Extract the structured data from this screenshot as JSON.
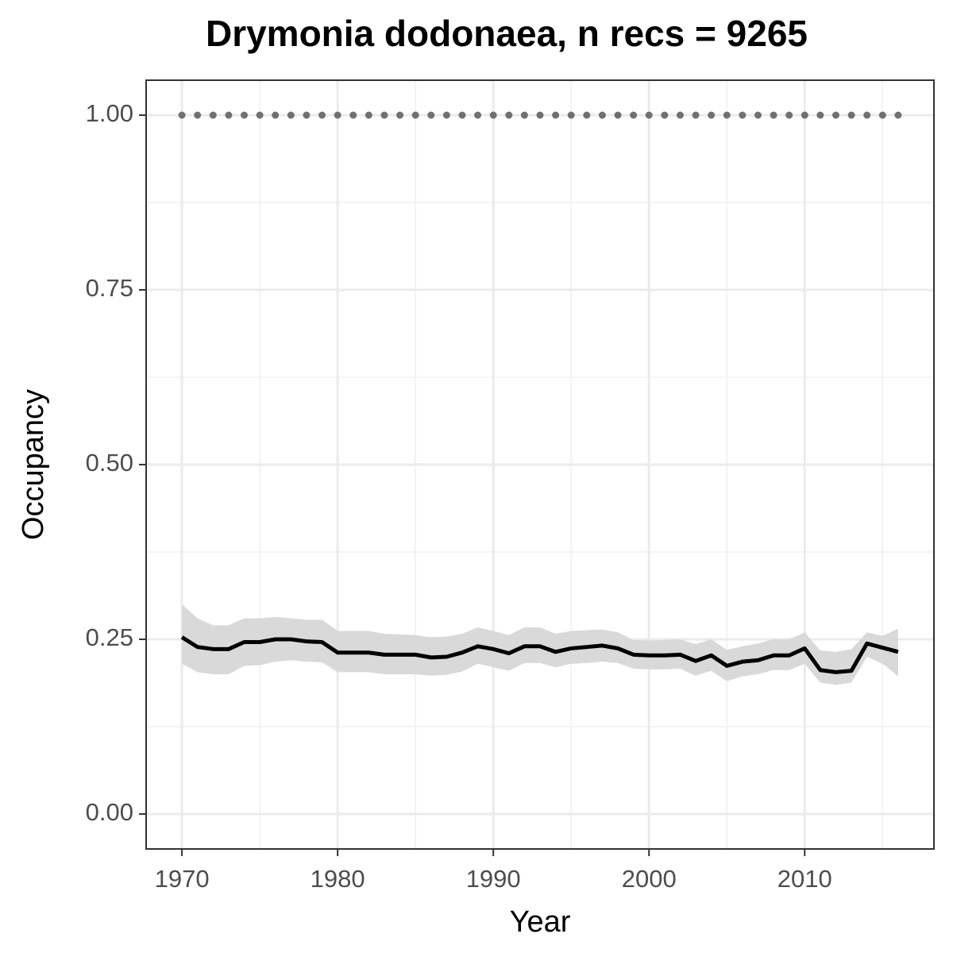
{
  "chart_data": {
    "type": "line",
    "title": "Drymonia dodonaea, n recs = 9265",
    "x_label": "Year",
    "y_label": "Occupancy",
    "x": [
      1970,
      1971,
      1972,
      1973,
      1974,
      1975,
      1976,
      1977,
      1978,
      1979,
      1980,
      1981,
      1982,
      1983,
      1984,
      1985,
      1986,
      1987,
      1988,
      1989,
      1990,
      1991,
      1992,
      1993,
      1994,
      1995,
      1996,
      1997,
      1998,
      1999,
      2000,
      2001,
      2002,
      2003,
      2004,
      2005,
      2006,
      2007,
      2008,
      2009,
      2010,
      2011,
      2012,
      2013,
      2014,
      2015,
      2016
    ],
    "series": [
      {
        "color": "#000000",
        "band_color": "#d9d9d9",
        "values": [
          0.253,
          0.239,
          0.236,
          0.236,
          0.246,
          0.246,
          0.25,
          0.25,
          0.247,
          0.246,
          0.231,
          0.231,
          0.231,
          0.228,
          0.228,
          0.228,
          0.224,
          0.225,
          0.231,
          0.24,
          0.236,
          0.23,
          0.24,
          0.24,
          0.232,
          0.237,
          0.239,
          0.241,
          0.237,
          0.228,
          0.227,
          0.227,
          0.228,
          0.219,
          0.227,
          0.212,
          0.218,
          0.22,
          0.227,
          0.227,
          0.237,
          0.206,
          0.203,
          0.205,
          0.244,
          0.238,
          0.232
        ],
        "upper": [
          0.3,
          0.28,
          0.27,
          0.27,
          0.28,
          0.28,
          0.282,
          0.28,
          0.278,
          0.278,
          0.262,
          0.262,
          0.262,
          0.258,
          0.257,
          0.256,
          0.253,
          0.254,
          0.258,
          0.267,
          0.262,
          0.256,
          0.267,
          0.267,
          0.258,
          0.262,
          0.263,
          0.264,
          0.26,
          0.249,
          0.248,
          0.249,
          0.25,
          0.243,
          0.25,
          0.235,
          0.24,
          0.244,
          0.25,
          0.25,
          0.26,
          0.234,
          0.232,
          0.236,
          0.26,
          0.255,
          0.265
        ],
        "lower": [
          0.215,
          0.203,
          0.2,
          0.2,
          0.212,
          0.213,
          0.218,
          0.22,
          0.218,
          0.217,
          0.203,
          0.203,
          0.203,
          0.2,
          0.2,
          0.2,
          0.198,
          0.199,
          0.204,
          0.215,
          0.21,
          0.205,
          0.216,
          0.216,
          0.21,
          0.215,
          0.216,
          0.218,
          0.216,
          0.208,
          0.207,
          0.207,
          0.208,
          0.198,
          0.205,
          0.19,
          0.197,
          0.2,
          0.206,
          0.206,
          0.215,
          0.188,
          0.185,
          0.188,
          0.225,
          0.215,
          0.197
        ]
      }
    ],
    "dots": {
      "color": "#707070",
      "values": [
        1,
        1,
        1,
        1,
        1,
        1,
        1,
        1,
        1,
        1,
        1,
        1,
        1,
        1,
        1,
        1,
        1,
        1,
        1,
        1,
        1,
        1,
        1,
        1,
        1,
        1,
        1,
        1,
        1,
        1,
        1,
        1,
        1,
        1,
        1,
        1,
        1,
        1,
        1,
        1,
        1,
        1,
        1,
        1,
        1,
        1,
        1
      ]
    },
    "xlim": [
      1967.7,
      2018.3
    ],
    "ylim": [
      -0.05,
      1.05
    ],
    "xticks": [
      1970,
      1980,
      1990,
      2000,
      2010
    ],
    "yticks": [
      {
        "value": 0,
        "label": "0.00"
      },
      {
        "value": 0.25,
        "label": "0.25"
      },
      {
        "value": 0.5,
        "label": "0.50"
      },
      {
        "value": 0.75,
        "label": "0.75"
      },
      {
        "value": 1,
        "label": "1.00"
      }
    ],
    "xminor": [
      1975,
      1985,
      1995,
      2005,
      2015
    ],
    "yminor": [
      0.125,
      0.375,
      0.625,
      0.875
    ],
    "grid": true
  }
}
